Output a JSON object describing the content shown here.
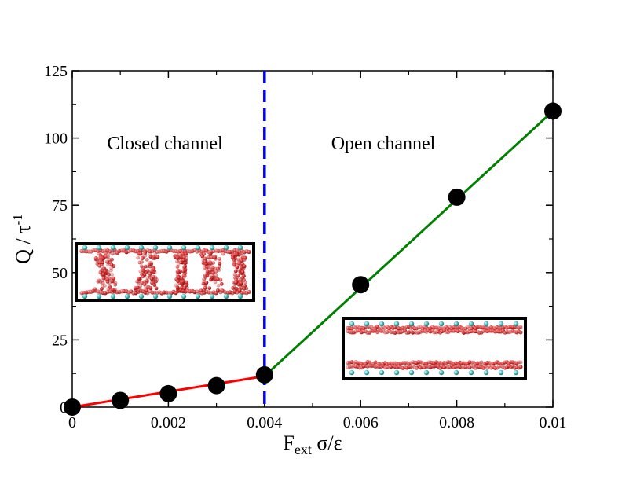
{
  "chart_data": {
    "type": "scatter",
    "xlabel": {
      "main": "F",
      "sub": "ext",
      "rest": " σ/ε"
    },
    "ylabel": {
      "main": "Q / τ",
      "sup": "-1"
    },
    "xlim": [
      0,
      0.01
    ],
    "ylim": [
      0,
      125
    ],
    "x_ticks": [
      0,
      0.002,
      0.004,
      0.006,
      0.008,
      0.01
    ],
    "x_tick_labels": [
      "0",
      "0.002",
      "0.004",
      "0.006",
      "0.008",
      "0.01"
    ],
    "y_ticks": [
      0,
      25,
      50,
      75,
      100,
      125
    ],
    "y_tick_labels": [
      "0",
      "25",
      "50",
      "75",
      "100",
      "125"
    ],
    "grid": false,
    "points": {
      "x": [
        0,
        0.001,
        0.002,
        0.003,
        0.004,
        0.006,
        0.008,
        0.01
      ],
      "y": [
        0,
        2.5,
        5,
        8,
        12,
        45.5,
        78,
        110
      ],
      "color": "#000000"
    },
    "fit_lines": [
      {
        "x": [
          0,
          0.004
        ],
        "y": [
          0,
          11.5
        ],
        "color": "#ff0000"
      },
      {
        "x": [
          0.004,
          0.01
        ],
        "y": [
          11.5,
          110
        ],
        "color": "#008000"
      }
    ],
    "threshold": {
      "x": 0.004,
      "color": "#0000ff",
      "style": "dashed"
    },
    "annotations": [
      "Closed channel",
      "Open channel"
    ]
  }
}
